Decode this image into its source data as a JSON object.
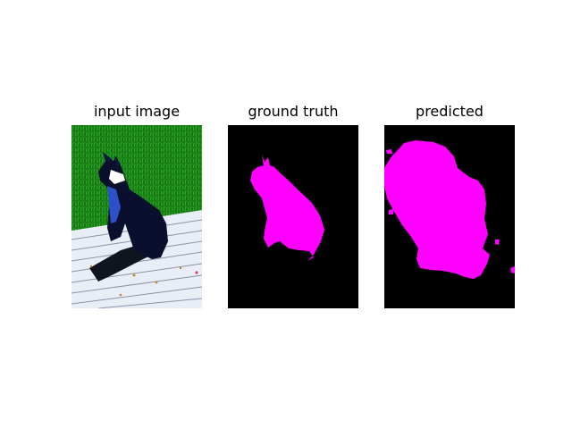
{
  "panels": [
    {
      "title": "input image"
    },
    {
      "title": "ground truth"
    },
    {
      "title": "predicted"
    }
  ],
  "colors": {
    "mask_foreground": "#ff00ff",
    "mask_background": "#000000",
    "grass": "#1f8a1a",
    "deck": "#e8eef5",
    "dog": "#0b1030",
    "dog_chest": "#2a4ec0"
  }
}
